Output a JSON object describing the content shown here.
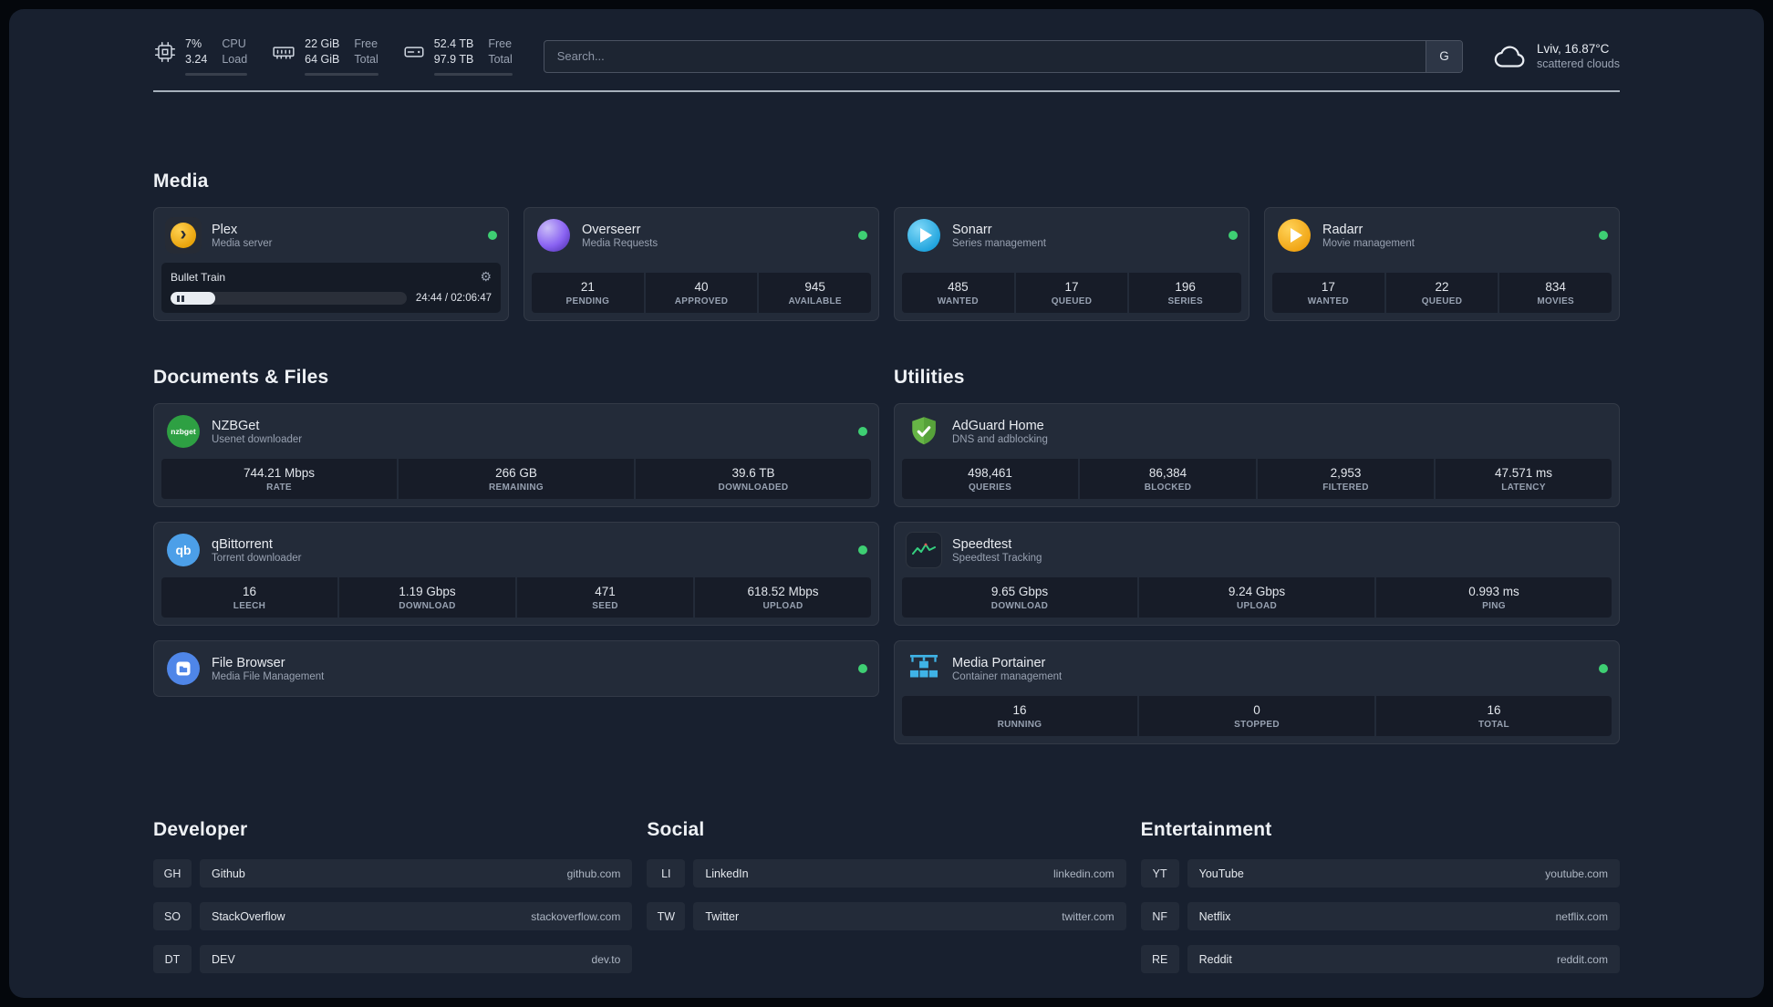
{
  "icons": {
    "gear": "⚙",
    "plex_chevron": "›"
  },
  "topbar": {
    "cpu": {
      "value1": "7%",
      "value2": "3.24",
      "label1": "CPU",
      "label2": "Load",
      "percent": 8
    },
    "memory": {
      "value1": "22 GiB",
      "value2": "64 GiB",
      "label1": "Free",
      "label2": "Total",
      "percent": 66
    },
    "disk": {
      "value1": "52.4 TB",
      "value2": "97.9 TB",
      "label1": "Free",
      "label2": "Total",
      "percent": 47
    },
    "search": {
      "placeholder": "Search...",
      "button_label": "G"
    },
    "weather": {
      "location": "Lviv, 16.87°C",
      "condition": "scattered clouds"
    }
  },
  "media": {
    "heading": "Media",
    "plex": {
      "title": "Plex",
      "subtitle": "Media server",
      "now_playing": "Bullet Train",
      "time": "24:44 / 02:06:47",
      "progress_percent": 19
    },
    "overseerr": {
      "title": "Overseerr",
      "subtitle": "Media Requests",
      "stats": [
        {
          "value": "21",
          "label": "PENDING"
        },
        {
          "value": "40",
          "label": "APPROVED"
        },
        {
          "value": "945",
          "label": "AVAILABLE"
        }
      ]
    },
    "sonarr": {
      "title": "Sonarr",
      "subtitle": "Series management",
      "stats": [
        {
          "value": "485",
          "label": "WANTED"
        },
        {
          "value": "17",
          "label": "QUEUED"
        },
        {
          "value": "196",
          "label": "SERIES"
        }
      ]
    },
    "radarr": {
      "title": "Radarr",
      "subtitle": "Movie management",
      "stats": [
        {
          "value": "17",
          "label": "WANTED"
        },
        {
          "value": "22",
          "label": "QUEUED"
        },
        {
          "value": "834",
          "label": "MOVIES"
        }
      ]
    }
  },
  "documents": {
    "heading": "Documents & Files",
    "nzbget": {
      "title": "NZBGet",
      "subtitle": "Usenet downloader",
      "icon_text": "nzbget",
      "stats": [
        {
          "value": "744.21 Mbps",
          "label": "RATE"
        },
        {
          "value": "266 GB",
          "label": "REMAINING"
        },
        {
          "value": "39.6 TB",
          "label": "DOWNLOADED"
        }
      ]
    },
    "qbittorrent": {
      "title": "qBittorrent",
      "subtitle": "Torrent downloader",
      "icon_text": "qb",
      "stats": [
        {
          "value": "16",
          "label": "LEECH"
        },
        {
          "value": "1.19 Gbps",
          "label": "DOWNLOAD"
        },
        {
          "value": "471",
          "label": "SEED"
        },
        {
          "value": "618.52 Mbps",
          "label": "UPLOAD"
        }
      ]
    },
    "filebrowser": {
      "title": "File Browser",
      "subtitle": "Media File Management"
    }
  },
  "utilities": {
    "heading": "Utilities",
    "adguard": {
      "title": "AdGuard Home",
      "subtitle": "DNS and adblocking",
      "stats": [
        {
          "value": "498,461",
          "label": "QUERIES"
        },
        {
          "value": "86,384",
          "label": "BLOCKED"
        },
        {
          "value": "2,953",
          "label": "FILTERED"
        },
        {
          "value": "47.571 ms",
          "label": "LATENCY"
        }
      ]
    },
    "speedtest": {
      "title": "Speedtest",
      "subtitle": "Speedtest Tracking",
      "stats": [
        {
          "value": "9.65 Gbps",
          "label": "DOWNLOAD"
        },
        {
          "value": "9.24 Gbps",
          "label": "UPLOAD"
        },
        {
          "value": "0.993 ms",
          "label": "PING"
        }
      ]
    },
    "portainer": {
      "title": "Media Portainer",
      "subtitle": "Container management",
      "stats": [
        {
          "value": "16",
          "label": "RUNNING"
        },
        {
          "value": "0",
          "label": "STOPPED"
        },
        {
          "value": "16",
          "label": "TOTAL"
        }
      ]
    }
  },
  "bookmarks": {
    "developer": {
      "heading": "Developer",
      "items": [
        {
          "abbr": "GH",
          "name": "Github",
          "url": "github.com"
        },
        {
          "abbr": "SO",
          "name": "StackOverflow",
          "url": "stackoverflow.com"
        },
        {
          "abbr": "DT",
          "name": "DEV",
          "url": "dev.to"
        }
      ]
    },
    "social": {
      "heading": "Social",
      "items": [
        {
          "abbr": "LI",
          "name": "LinkedIn",
          "url": "linkedin.com"
        },
        {
          "abbr": "TW",
          "name": "Twitter",
          "url": "twitter.com"
        }
      ]
    },
    "entertainment": {
      "heading": "Entertainment",
      "items": [
        {
          "abbr": "YT",
          "name": "YouTube",
          "url": "youtube.com"
        },
        {
          "abbr": "NF",
          "name": "Netflix",
          "url": "netflix.com"
        },
        {
          "abbr": "RE",
          "name": "Reddit",
          "url": "reddit.com"
        }
      ]
    }
  },
  "colors": {
    "status_online": "#3ecf73",
    "background": "#18202f",
    "accent_blue": "#3fb3e6",
    "adguard_green": "#5fae44"
  }
}
